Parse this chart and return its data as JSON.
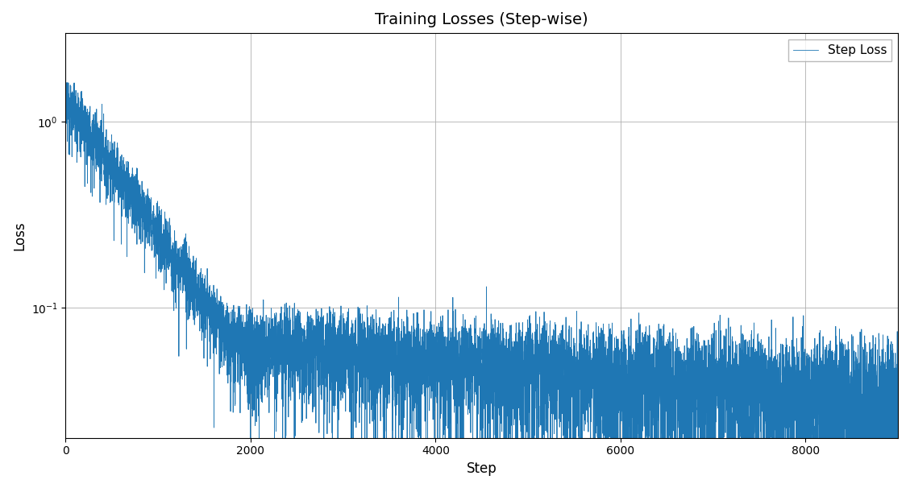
{
  "title": "Training Losses (Step-wise)",
  "xlabel": "Step",
  "ylabel": "Loss",
  "legend_label": "Step Loss",
  "line_color": "#1f77b4",
  "line_width": 0.6,
  "total_steps": 9000,
  "initial_loss": 1.35,
  "plateau_loss": 0.065,
  "final_loss": 0.03,
  "fast_decay_end": 1800,
  "spike_step": 4550,
  "spike_value": 0.13,
  "background_color": "#ffffff",
  "grid_color": "#b0b0b0",
  "ylim_bottom": 0.02,
  "ylim_top": 3.0,
  "xlim_left": 0,
  "xlim_right": 9000,
  "noise_plateau": 0.018
}
